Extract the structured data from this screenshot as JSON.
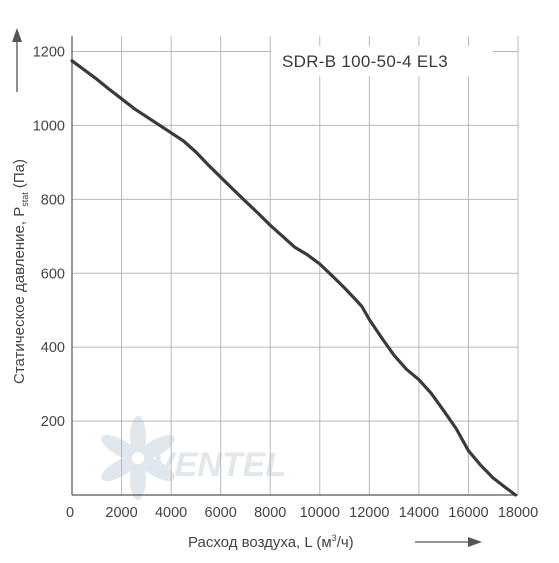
{
  "chart_data": {
    "type": "line",
    "model_label": "SDR-B 100-50-4 EL3",
    "xlabel": {
      "prefix": "Расход воздуха, L (м",
      "sup": "3",
      "suffix": "/ч)"
    },
    "ylabel": {
      "prefix": "Статическое давление, P",
      "sub": "stat",
      "suffix": " (Па)"
    },
    "xlim": [
      0,
      18000
    ],
    "ylim": [
      0,
      1200
    ],
    "x_ticks": [
      0,
      2000,
      4000,
      6000,
      8000,
      10000,
      12000,
      14000,
      16000,
      18000
    ],
    "y_ticks": [
      200,
      400,
      600,
      800,
      1000,
      1200
    ],
    "x_tick_labels": [
      "0",
      "2000",
      "4000",
      "6000",
      "8000",
      "10000",
      "12000",
      "14000",
      "16000",
      "18000"
    ],
    "y_tick_labels": [
      "200",
      "400",
      "600",
      "800",
      "1000",
      "1200"
    ],
    "grid": true,
    "series": [
      {
        "x": [
          0,
          500,
          1000,
          1500,
          2000,
          2500,
          3000,
          3500,
          4000,
          4500,
          5000,
          5500,
          6000,
          6500,
          7000,
          7500,
          8000,
          8500,
          9000,
          9500,
          10000,
          10500,
          11000,
          11500,
          11700,
          12000,
          12500,
          13000,
          13500,
          14000,
          14500,
          15000,
          15500,
          16000,
          16500,
          17000,
          17500,
          17900
        ],
        "y": [
          1175,
          1150,
          1125,
          1098,
          1072,
          1046,
          1024,
          1002,
          980,
          958,
          928,
          893,
          860,
          827,
          795,
          763,
          730,
          700,
          670,
          650,
          625,
          593,
          560,
          525,
          510,
          475,
          425,
          378,
          340,
          312,
          275,
          228,
          180,
          120,
          80,
          46,
          20,
          0
        ]
      }
    ],
    "line_color": "#3a3a3a",
    "watermark": "VENTEL"
  }
}
